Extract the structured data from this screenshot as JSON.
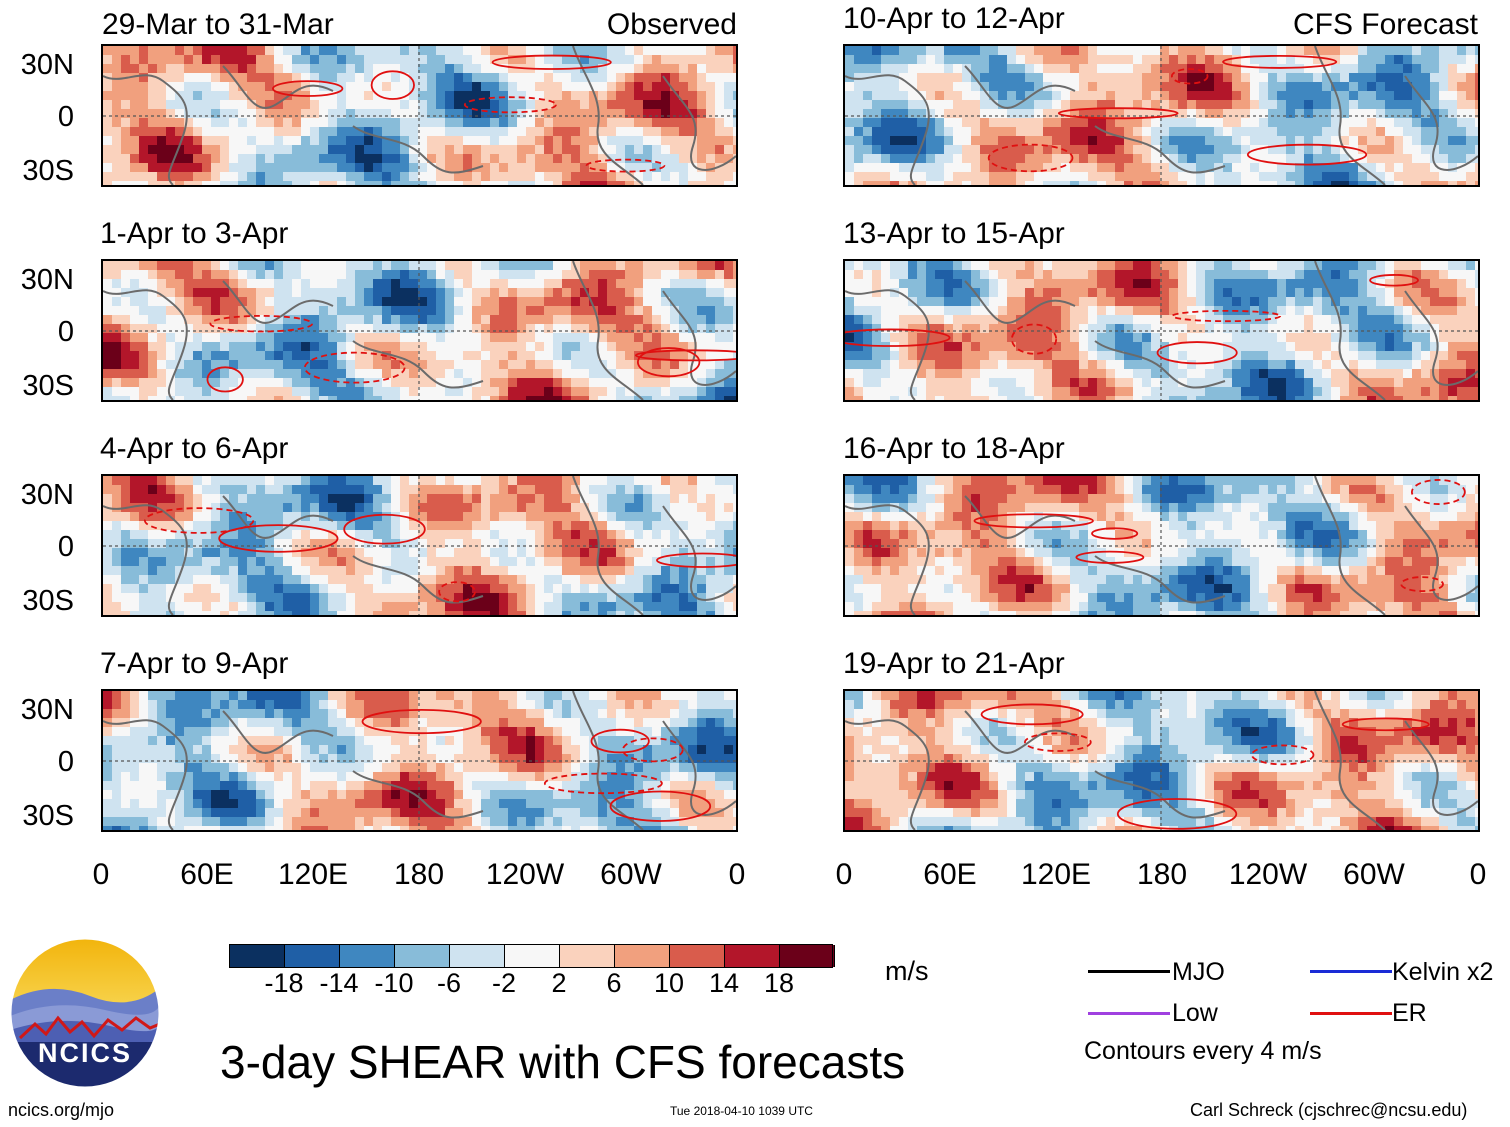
{
  "panels": {
    "left": [
      {
        "title": "29-Mar to 31-Mar",
        "tag": "Observed"
      },
      {
        "title": "1-Apr to 3-Apr",
        "tag": ""
      },
      {
        "title": "4-Apr to 6-Apr",
        "tag": ""
      },
      {
        "title": "7-Apr to 9-Apr",
        "tag": ""
      }
    ],
    "right": [
      {
        "title": "10-Apr to 12-Apr",
        "tag": "CFS Forecast"
      },
      {
        "title": "13-Apr to 15-Apr",
        "tag": ""
      },
      {
        "title": "16-Apr to 18-Apr",
        "tag": ""
      },
      {
        "title": "19-Apr to 21-Apr",
        "tag": ""
      }
    ]
  },
  "lat_labels": [
    "30N",
    "0",
    "30S"
  ],
  "lon_labels": [
    "0",
    "60E",
    "120E",
    "180",
    "120W",
    "60W",
    "0"
  ],
  "colorbar": {
    "unit": "m/s",
    "ticks": [
      "-18",
      "-14",
      "-10",
      "-6",
      "-2",
      "2",
      "6",
      "10",
      "14",
      "18"
    ],
    "colors": [
      "#0b3060",
      "#1f5fa6",
      "#3f87c0",
      "#88bcd9",
      "#cfe3f0",
      "#f7f7f7",
      "#fad2bd",
      "#f1a07e",
      "#d95c4c",
      "#b3162a",
      "#6b0019"
    ]
  },
  "legend": {
    "mjo": "MJO",
    "kelvin": "Kelvin x2",
    "low": "Low",
    "er": "ER",
    "contours": "Contours every 4 m/s",
    "colors": {
      "mjo": "#000000",
      "kelvin": "#1a2bd6",
      "low": "#a040e0",
      "er": "#e01010"
    }
  },
  "logo": {
    "text": "NCICS",
    "url": "ncics.org/mjo"
  },
  "main_title": "3-day SHEAR with CFS forecasts",
  "timestamp": "Tue 2018-04-10 1039 UTC",
  "credit": "Carl Schreck (cjschrec@ncsu.edu)"
}
